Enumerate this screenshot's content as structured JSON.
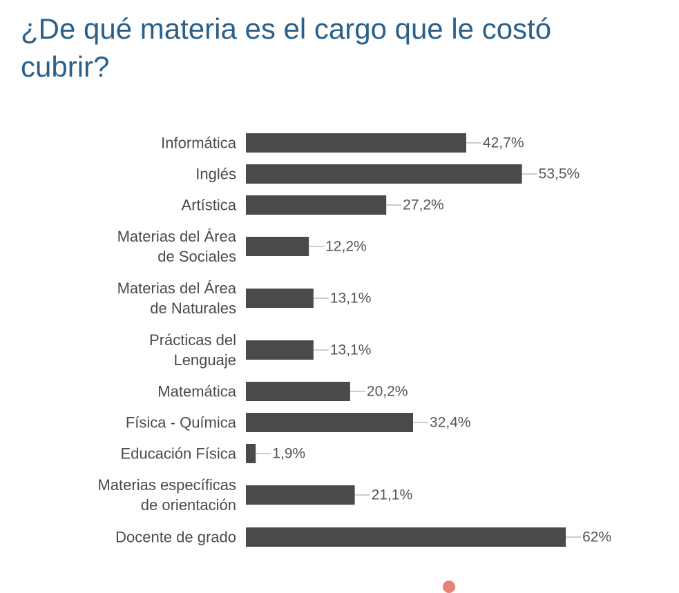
{
  "chart_data": {
    "type": "bar",
    "orientation": "horizontal",
    "title": "¿De qué materia es el cargo que le costó cubrir?",
    "categories": [
      [
        "Informática"
      ],
      [
        "Inglés"
      ],
      [
        "Artística"
      ],
      [
        "Materias del Área",
        "de Sociales"
      ],
      [
        "Materias del Área",
        "de Naturales"
      ],
      [
        "Prácticas del",
        "Lenguaje"
      ],
      [
        "Matemática"
      ],
      [
        "Física - Química"
      ],
      [
        "Educación Física"
      ],
      [
        "Materias específicas",
        "de orientación"
      ],
      [
        "Docente de grado"
      ]
    ],
    "values": [
      42.7,
      53.5,
      27.2,
      12.2,
      13.1,
      13.1,
      20.2,
      32.4,
      1.9,
      21.1,
      62
    ],
    "value_labels": [
      "42,7%",
      "53,5%",
      "27,2%",
      "12,2%",
      "13,1%",
      "13,1%",
      "20,2%",
      "32,4%",
      "1,9%",
      "21,1%",
      "62%"
    ],
    "unit": "%",
    "xlim": [
      0,
      62
    ],
    "grid": false,
    "bar_color": "#4b4a4b",
    "title_color": "#2a6089"
  }
}
